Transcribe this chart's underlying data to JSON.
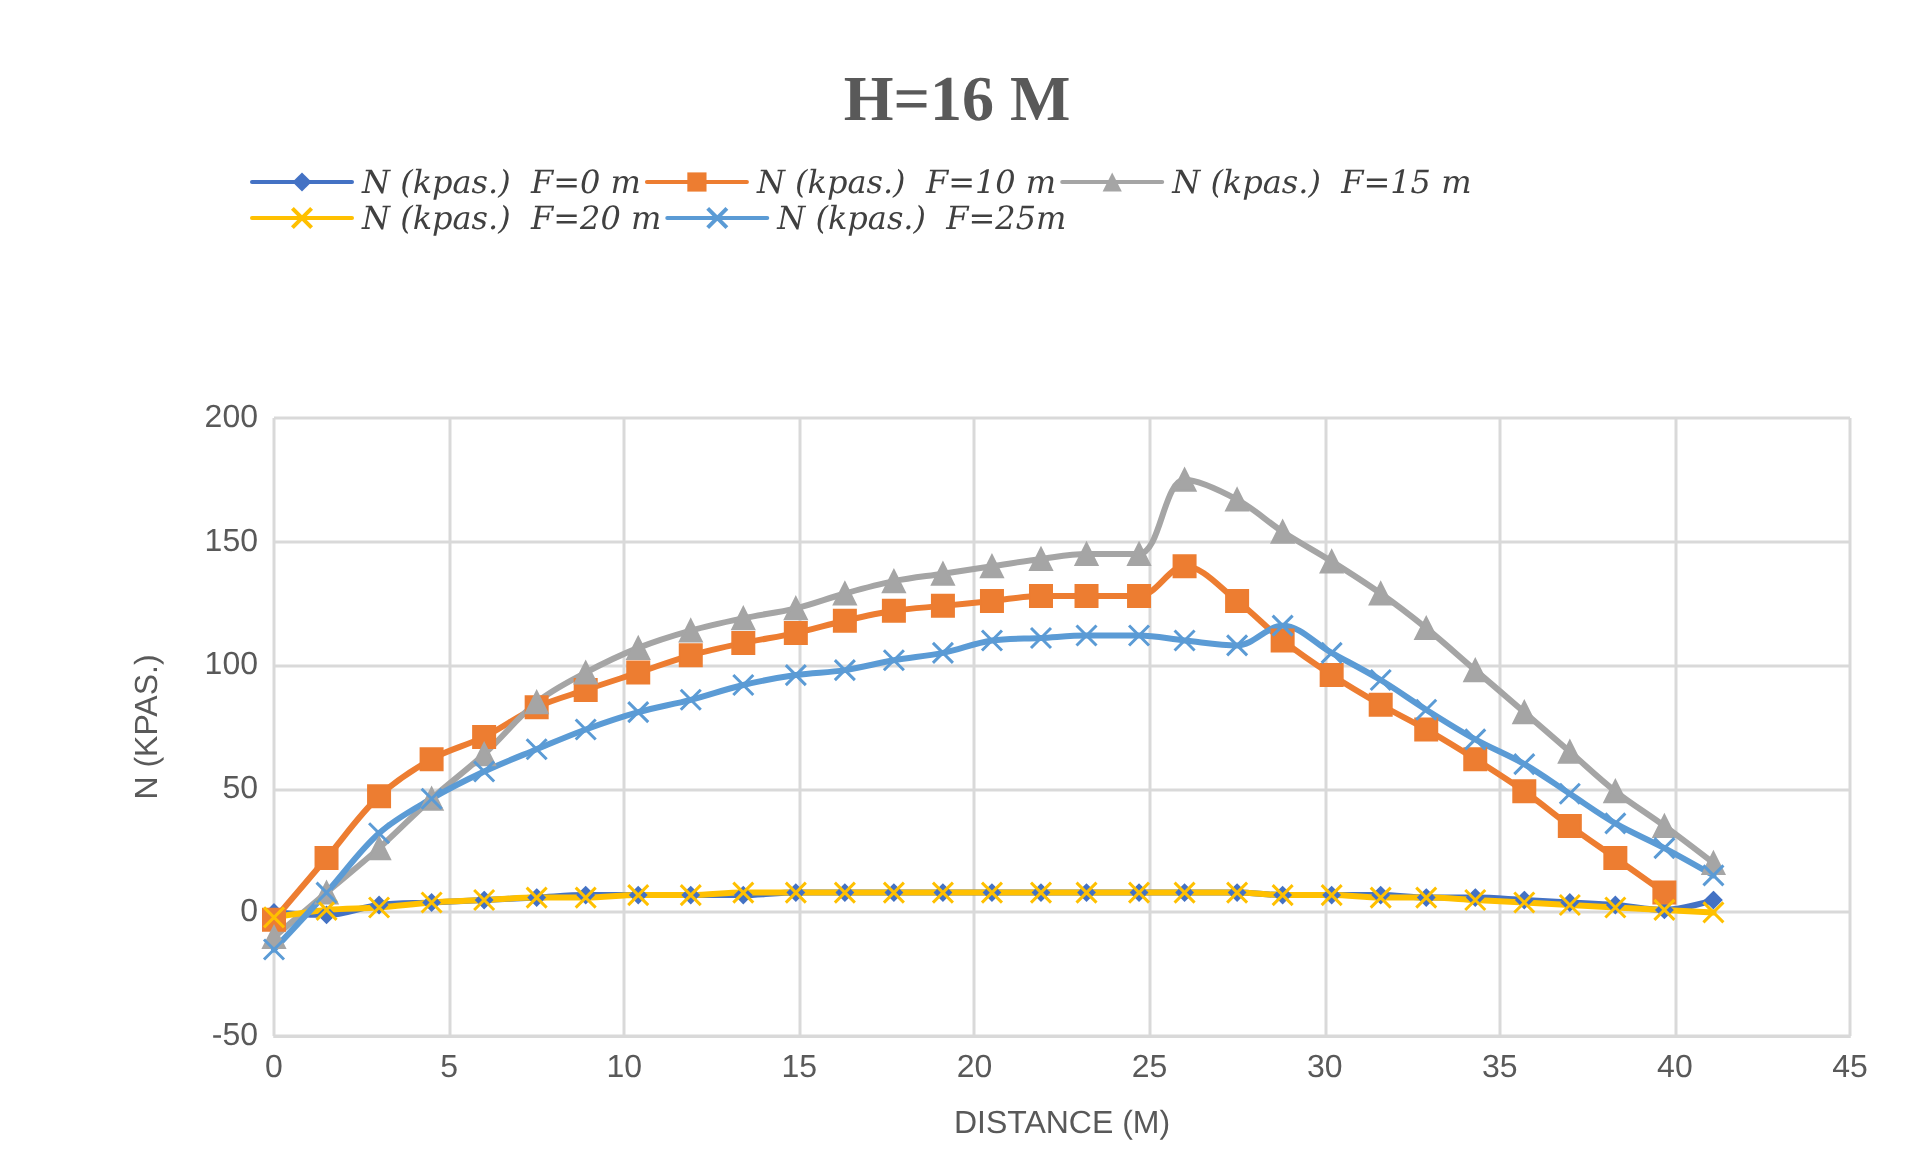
{
  "chart_data": {
    "type": "line",
    "title": "H=16 M",
    "xlabel": "DISTANCE (M)",
    "ylabel": "N (KPAS.)",
    "x": [
      0,
      1.5,
      3,
      4.5,
      6,
      7.5,
      8.9,
      10.4,
      11.9,
      13.4,
      14.9,
      16.3,
      17.7,
      19.1,
      20.5,
      21.9,
      23.2,
      24.7,
      26,
      27.5,
      28.8,
      30.2,
      31.6,
      32.9,
      34.3,
      35.7,
      37,
      38.3,
      39.7,
      41.1
    ],
    "series": [
      {
        "name": "N (kpas.)  F=0 m",
        "color": "#4472c4",
        "marker": "diamond",
        "values": [
          0,
          -1,
          3,
          4,
          5,
          6,
          7,
          7,
          7,
          7,
          8,
          8,
          8,
          8,
          8,
          8,
          8,
          8,
          8,
          8,
          7,
          7,
          7,
          6,
          6,
          5,
          4,
          3,
          1,
          5
        ]
      },
      {
        "name": "N (kpas.)  F=10 m",
        "color": "#ed7d31",
        "marker": "square",
        "values": [
          -3,
          22,
          47,
          62,
          71,
          83,
          90,
          97,
          104,
          109,
          113,
          118,
          122,
          124,
          126,
          128,
          128,
          128,
          140,
          126,
          110,
          96,
          84,
          74,
          62,
          49,
          35,
          22,
          8,
          null
        ]
      },
      {
        "name": "N (kpas.)  F=15 m",
        "color": "#a5a5a5",
        "marker": "triangle",
        "values": [
          -10,
          8,
          26,
          46,
          64,
          85,
          97,
          107,
          114,
          119,
          123,
          129,
          134,
          137,
          140,
          143,
          145,
          145,
          175,
          167,
          154,
          142,
          129,
          115,
          98,
          81,
          65,
          49,
          35,
          20
        ]
      },
      {
        "name": "N (kpas.)  F=20 m",
        "color": "#ffc000",
        "marker": "cross",
        "values": [
          -2,
          1,
          2,
          4,
          5,
          6,
          6,
          7,
          7,
          8,
          8,
          8,
          8,
          8,
          8,
          8,
          8,
          8,
          8,
          8,
          7,
          7,
          6,
          6,
          5,
          4,
          3,
          2,
          1,
          0
        ]
      },
      {
        "name": "N (kpas.)  F=25m",
        "color": "#5b9bd5",
        "marker": "cross",
        "values": [
          -15,
          8,
          32,
          46,
          57,
          66,
          74,
          81,
          86,
          92,
          96,
          98,
          102,
          105,
          110,
          111,
          112,
          112,
          110,
          108,
          116,
          105,
          94,
          82,
          70,
          60,
          48,
          36,
          26,
          15
        ]
      }
    ],
    "xlim": [
      0,
      45
    ],
    "xticks": [
      0,
      5,
      10,
      15,
      20,
      25,
      30,
      35,
      40,
      45
    ],
    "ylim": [
      -50,
      200
    ],
    "yticks": [
      -50,
      0,
      50,
      100,
      150,
      200
    ],
    "grid": true,
    "legend": "top"
  }
}
